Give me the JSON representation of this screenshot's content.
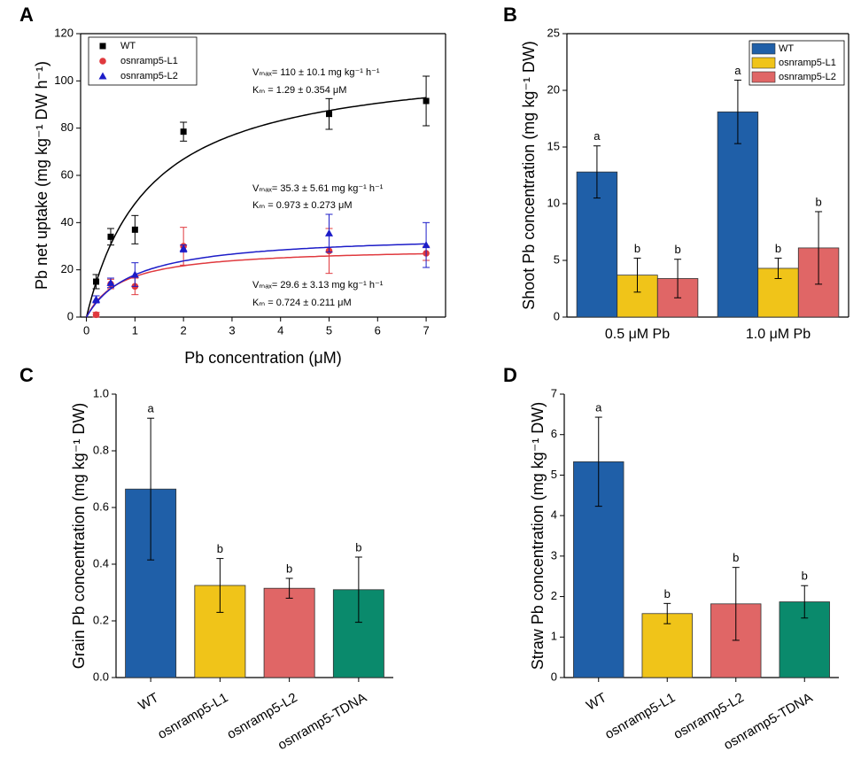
{
  "chart_data": [
    {
      "type": "scatter",
      "panel": "A",
      "xlabel": "Pb concentration (μM)",
      "ylabel": "Pb net uptake (mg kg⁻¹ DW h⁻¹)",
      "xlim": [
        -0.12,
        7.4
      ],
      "xticks": [
        0,
        1,
        2,
        3,
        4,
        5,
        6,
        7
      ],
      "ylim": [
        0,
        120
      ],
      "yticks": [
        0,
        20,
        40,
        60,
        80,
        100,
        120
      ],
      "legend": "upper left",
      "series": [
        {
          "name": "WT",
          "color": "#000000",
          "marker": "square",
          "x": [
            0.2,
            0.5,
            1,
            2,
            5,
            7
          ],
          "values": [
            15,
            34,
            37,
            78.5,
            86,
            91.5
          ],
          "errors": [
            3,
            3.5,
            6,
            4,
            6.5,
            10.5
          ],
          "fit": {
            "vmax": 110,
            "km": 1.29
          }
        },
        {
          "name": "osnramp5-L1",
          "color": "#e0393e",
          "marker": "circle",
          "x": [
            0.2,
            0.5,
            1,
            2,
            5,
            7
          ],
          "values": [
            1,
            14,
            13,
            30,
            28,
            27
          ],
          "errors": [
            1,
            2,
            3.5,
            8,
            9.5,
            3
          ],
          "fit": {
            "vmax": 29.6,
            "km": 0.724
          }
        },
        {
          "name": "osnramp5-L2",
          "color": "#1c1cc8",
          "marker": "triangle",
          "x": [
            0.2,
            0.5,
            1,
            2,
            5,
            7
          ],
          "values": [
            7.5,
            14.5,
            18,
            29,
            35.5,
            30.5
          ],
          "errors": [
            1.5,
            2,
            5,
            1.5,
            8,
            9.5
          ],
          "fit": {
            "vmax": 35.3,
            "km": 0.973
          }
        }
      ],
      "annotations": [
        "Vₘₐₓ= 110 ± 10.1 mg kg⁻¹ h⁻¹",
        "Kₘ = 1.29 ± 0.354 μM",
        "Vₘₐₓ= 35.3 ± 5.61 mg kg⁻¹ h⁻¹",
        "Kₘ = 0.973 ± 0.273 μM",
        "Vₘₐₓ= 29.6 ± 3.13  mg kg⁻¹ h⁻¹",
        "Kₘ = 0.724 ± 0.211  μM"
      ]
    },
    {
      "type": "bar",
      "panel": "B",
      "ylabel": "Shoot Pb concentration (mg kg⁻¹ DW)",
      "categories": [
        "0.5 μM Pb",
        "1.0 μM Pb"
      ],
      "ylim": [
        0,
        25
      ],
      "yticks": [
        0,
        5,
        10,
        15,
        20,
        25
      ],
      "legend": "upper right",
      "series": [
        {
          "name": "WT",
          "color": "#1f5fa8",
          "values": [
            12.8,
            18.1
          ],
          "errors": [
            2.3,
            2.8
          ],
          "letters": [
            "a",
            "a"
          ]
        },
        {
          "name": "osnramp5-L1",
          "color": "#f0c419",
          "values": [
            3.7,
            4.3
          ],
          "errors": [
            1.5,
            0.9
          ],
          "letters": [
            "b",
            "b"
          ]
        },
        {
          "name": "osnramp5-L2",
          "color": "#e06666",
          "values": [
            3.4,
            6.1
          ],
          "errors": [
            1.7,
            3.2
          ],
          "letters": [
            "b",
            "b"
          ]
        }
      ]
    },
    {
      "type": "bar",
      "panel": "C",
      "ylabel": "Grain Pb concentration (mg kg⁻¹ DW)",
      "categories": [
        "WT",
        "osnramp5-L1",
        "osnramp5-L2",
        "osnramp5-TDNA"
      ],
      "values": [
        0.665,
        0.325,
        0.315,
        0.31
      ],
      "errors": [
        0.25,
        0.095,
        0.035,
        0.115
      ],
      "letters": [
        "a",
        "b",
        "b",
        "b"
      ],
      "colors": [
        "#1f5fa8",
        "#f0c419",
        "#e06666",
        "#0a8a6c"
      ],
      "ylim": [
        0,
        1.0
      ],
      "yticks": [
        {
          "value": 0,
          "label": "0.0"
        },
        0.2,
        0.4,
        0.6,
        0.8,
        {
          "value": 1.0,
          "label": "1.0"
        }
      ]
    },
    {
      "type": "bar",
      "panel": "D",
      "ylabel": "Straw Pb concentration (mg kg⁻¹ DW)",
      "categories": [
        "WT",
        "osnramp5-L1",
        "osnramp5-L2",
        "osnramp5-TDNA"
      ],
      "values": [
        5.33,
        1.58,
        1.82,
        1.87
      ],
      "errors": [
        1.1,
        0.25,
        0.9,
        0.4
      ],
      "letters": [
        "a",
        "b",
        "b",
        "b"
      ],
      "colors": [
        "#1f5fa8",
        "#f0c419",
        "#e06666",
        "#0a8a6c"
      ],
      "ylim": [
        0,
        7
      ],
      "yticks": [
        0,
        1,
        2,
        3,
        4,
        5,
        6,
        7
      ]
    }
  ]
}
